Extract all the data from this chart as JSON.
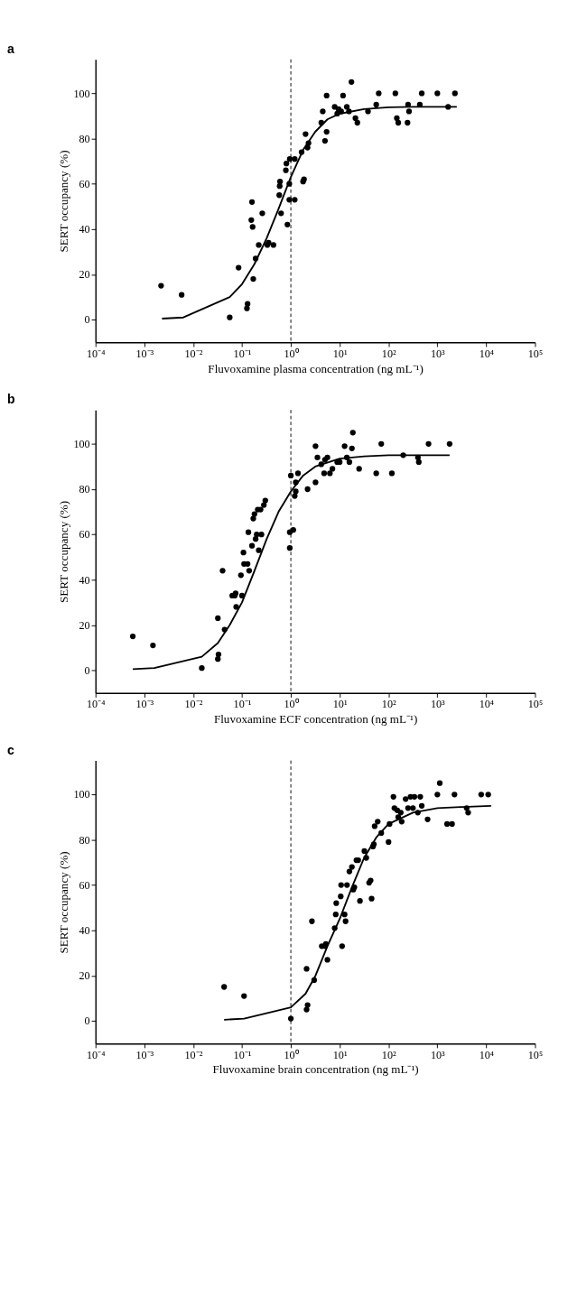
{
  "chart_data": [
    {
      "type": "scatter",
      "title": "a",
      "xlabel": "Fluvoxamine plasma concentration (ng mL⁻¹)",
      "ylabel": "SERT occupancy (%)",
      "log": "x",
      "grid": false,
      "xlim": [
        0.0001,
        100000
      ],
      "ylim": [
        -10,
        115
      ],
      "xticks": [
        {
          "value": 0.0001,
          "label": "10⁻⁴"
        },
        {
          "value": 0.001,
          "label": "10⁻³"
        },
        {
          "value": 0.01,
          "label": "10⁻²"
        },
        {
          "value": 0.1,
          "label": "10⁻¹"
        },
        {
          "value": 1,
          "label": "10⁰"
        },
        {
          "value": 10,
          "label": "10¹"
        },
        {
          "value": 100,
          "label": "10²"
        },
        {
          "value": 1000,
          "label": "10³"
        },
        {
          "value": 10000,
          "label": "10⁴"
        },
        {
          "value": 100000,
          "label": "10⁵"
        }
      ],
      "yticks": [
        0,
        20,
        40,
        60,
        80,
        100
      ],
      "ref_lines": [
        {
          "axis": "x",
          "value": 1,
          "color": "#000000",
          "line_style": "dashed"
        }
      ],
      "series": [
        {
          "type": "scatter",
          "marker": "circle",
          "color": "#000000",
          "x": [
            0.0022,
            0.0058,
            0.056,
            0.085,
            0.126,
            0.13,
            0.155,
            0.16,
            0.165,
            0.17,
            0.19,
            0.22,
            0.26,
            0.33,
            0.35,
            0.44,
            0.58,
            0.59,
            0.6,
            0.63,
            0.79,
            0.81,
            0.85,
            0.93,
            0.93,
            0.95,
            1.2,
            1.2,
            1.66,
            1.78,
            1.86,
            2.2,
            2.0,
            2.3,
            4.2,
            4.5,
            5.0,
            5.4,
            5.4,
            7.9,
            8.9,
            9.5,
            10.7,
            11.7,
            14,
            15.5,
            17.4,
            21,
            23,
            38,
            56,
            63,
            138,
            148,
            158,
            245,
            263,
            251,
            437,
            479,
            1000,
            1660,
            2290
          ],
          "values": [
            15,
            11,
            1,
            23,
            5,
            7,
            44,
            52,
            41,
            18,
            27,
            33,
            47,
            33,
            34,
            33,
            55,
            59,
            61,
            47,
            66,
            69,
            42,
            53,
            60,
            71,
            53,
            71,
            74,
            61,
            62,
            76,
            82,
            78,
            87,
            92,
            79,
            83,
            99,
            94,
            91,
            93,
            92,
            99,
            94,
            92,
            105,
            89,
            87,
            92,
            95,
            100,
            100,
            89,
            87,
            87,
            92,
            95,
            95,
            100,
            100,
            94,
            100
          ]
        },
        {
          "type": "line",
          "marker": "none",
          "line_style": "solid",
          "color": "#000000",
          "x": [
            0.0023,
            0.0063,
            0.056,
            0.1,
            0.18,
            0.32,
            0.56,
            1,
            1.78,
            3.16,
            5.6,
            10,
            31.6,
            100,
            316,
            1000,
            2500
          ],
          "values": [
            0.5,
            1,
            10,
            15.7,
            24.6,
            36,
            49,
            63,
            75,
            83,
            88.5,
            91,
            93,
            93.8,
            94,
            94,
            94
          ]
        }
      ]
    },
    {
      "type": "scatter",
      "title": "b",
      "xlabel": "Fluvoxamine ECF concentration (ng mL⁻¹)",
      "ylabel": "SERT occupancy (%)",
      "log": "x",
      "grid": false,
      "xlim": [
        0.0001,
        100000
      ],
      "ylim": [
        -10,
        115
      ],
      "xticks": [
        {
          "value": 0.0001,
          "label": "10⁻⁴"
        },
        {
          "value": 0.001,
          "label": "10⁻³"
        },
        {
          "value": 0.01,
          "label": "10⁻²"
        },
        {
          "value": 0.1,
          "label": "10⁻¹"
        },
        {
          "value": 1,
          "label": "10⁰"
        },
        {
          "value": 10,
          "label": "10¹"
        },
        {
          "value": 100,
          "label": "10²"
        },
        {
          "value": 1000,
          "label": "10³"
        },
        {
          "value": 10000,
          "label": "10⁴"
        },
        {
          "value": 100000,
          "label": "10⁵"
        }
      ],
      "yticks": [
        0,
        20,
        40,
        60,
        80,
        100
      ],
      "ref_lines": [
        {
          "axis": "x",
          "value": 1,
          "color": "#000000",
          "line_style": "dashed"
        }
      ],
      "series": [
        {
          "type": "scatter",
          "marker": "circle",
          "color": "#000000",
          "x": [
            0.00058,
            0.0015,
            0.015,
            0.032,
            0.032,
            0.033,
            0.04,
            0.044,
            0.063,
            0.071,
            0.074,
            0.076,
            0.095,
            0.1,
            0.107,
            0.11,
            0.135,
            0.13,
            0.14,
            0.16,
            0.17,
            0.18,
            0.19,
            0.2,
            0.21,
            0.22,
            0.24,
            0.25,
            0.28,
            0.3,
            0.95,
            0.95,
            1.0,
            1.12,
            1.2,
            1.26,
            1.26,
            1.4,
            2.2,
            3.2,
            3.2,
            3.5,
            4.2,
            5.0,
            4.8,
            5.6,
            6.3,
            7.1,
            8.9,
            10,
            12.6,
            14,
            15.8,
            18.6,
            17.8,
            25,
            71,
            56,
            117,
            200,
            400,
            417,
            660,
            1780
          ],
          "values": [
            15,
            11,
            1,
            23,
            5,
            7,
            44,
            18,
            33,
            33,
            34,
            28,
            42,
            33,
            52,
            47,
            61,
            47,
            44,
            55,
            67,
            69,
            58,
            60,
            71,
            53,
            71,
            60,
            73,
            75,
            54,
            61,
            86,
            62,
            77,
            79,
            83,
            87,
            80,
            83,
            99,
            94,
            91,
            93,
            87,
            94,
            87,
            89,
            92,
            92,
            99,
            94,
            92,
            105,
            98,
            89,
            100,
            87,
            87,
            95,
            94,
            92,
            100,
            100
          ]
        },
        {
          "type": "line",
          "marker": "none",
          "line_style": "solid",
          "color": "#000000",
          "x": [
            0.00058,
            0.0016,
            0.015,
            0.032,
            0.056,
            0.1,
            0.18,
            0.32,
            0.56,
            1,
            1.78,
            3.16,
            10,
            31.6,
            100,
            1780
          ],
          "values": [
            0.5,
            1,
            6,
            12,
            20,
            30,
            44,
            58,
            70,
            79,
            86,
            90,
            93.5,
            94.5,
            95,
            95
          ]
        }
      ]
    },
    {
      "type": "scatter",
      "title": "c",
      "xlabel": "Fluvoxamine brain concentration (ng mL⁻¹)",
      "ylabel": "SERT occupancy (%)",
      "log": "x",
      "grid": false,
      "xlim": [
        0.0001,
        100000
      ],
      "ylim": [
        -10,
        115
      ],
      "xticks": [
        {
          "value": 0.0001,
          "label": "10⁻⁴"
        },
        {
          "value": 0.001,
          "label": "10⁻³"
        },
        {
          "value": 0.01,
          "label": "10⁻²"
        },
        {
          "value": 0.1,
          "label": "10⁻¹"
        },
        {
          "value": 1,
          "label": "10⁰"
        },
        {
          "value": 10,
          "label": "10¹"
        },
        {
          "value": 100,
          "label": "10²"
        },
        {
          "value": 1000,
          "label": "10³"
        },
        {
          "value": 10000,
          "label": "10⁴"
        },
        {
          "value": 100000,
          "label": "10⁵"
        }
      ],
      "yticks": [
        0,
        20,
        40,
        60,
        80,
        100
      ],
      "ref_lines": [
        {
          "axis": "x",
          "value": 1,
          "color": "#000000",
          "line_style": "dashed"
        }
      ],
      "series": [
        {
          "type": "scatter",
          "marker": "circle",
          "color": "#000000",
          "x": [
            0.043,
            0.11,
            1.0,
            2.1,
            2.1,
            2.2,
            2.7,
            3.0,
            4.3,
            5.0,
            5.2,
            5.6,
            7.9,
            8.3,
            8.5,
            10.5,
            10.7,
            11.2,
            12.6,
            13.2,
            14.1,
            15.8,
            17.8,
            19,
            20,
            22,
            24,
            26,
            32,
            35,
            40,
            43,
            45,
            48,
            50,
            52,
            60,
            71,
            100,
            105,
            126,
            132,
            151,
            158,
            178,
            186,
            224,
            251,
            282,
            316,
            339,
            398,
            447,
            479,
            631,
            1000,
            1120,
            1580,
            2000,
            2240,
            3980,
            4270,
            7900,
            11000
          ],
          "values": [
            15,
            11,
            1,
            23,
            5,
            7,
            44,
            18,
            33,
            33,
            34,
            27,
            41,
            47,
            52,
            55,
            60,
            33,
            47,
            44,
            60,
            66,
            68,
            58,
            59,
            71,
            71,
            53,
            75,
            72,
            61,
            62,
            54,
            77,
            78,
            86,
            88,
            83,
            79,
            87,
            99,
            94,
            93,
            90,
            92,
            88,
            98,
            94,
            99,
            94,
            99,
            92,
            99,
            95,
            89,
            100,
            105,
            87,
            87,
            100,
            94,
            92,
            100,
            100
          ]
        },
        {
          "type": "line",
          "marker": "none",
          "line_style": "solid",
          "color": "#000000",
          "x": [
            0.043,
            0.11,
            1,
            2,
            3.2,
            5.6,
            10,
            17.8,
            31.6,
            56,
            100,
            316,
            1000,
            3160,
            12600
          ],
          "values": [
            0.5,
            1,
            6,
            12,
            20,
            33,
            45,
            59,
            72,
            81,
            87,
            92,
            94,
            94.5,
            95
          ]
        }
      ]
    }
  ]
}
